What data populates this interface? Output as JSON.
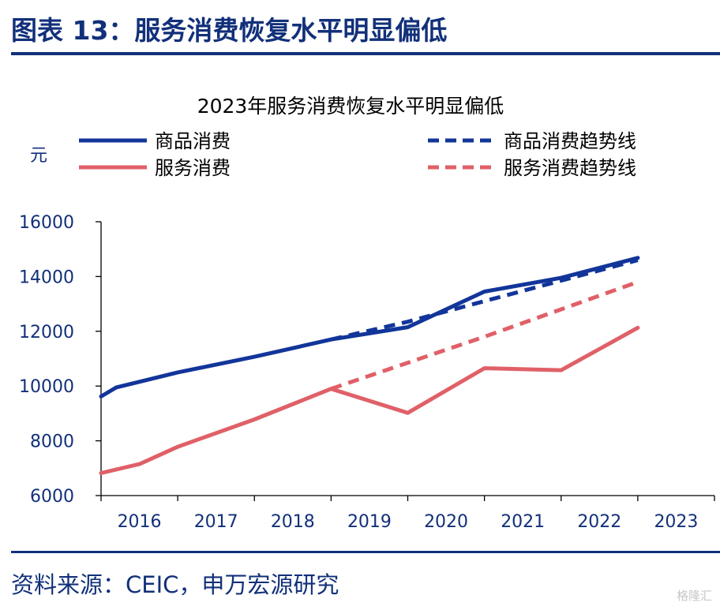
{
  "figure_label": "图表 13：服务消费恢复水平明显偏低",
  "source_note": "资料来源：CEIC，申万宏源研究",
  "watermark": "格隆汇",
  "colors": {
    "goods": "#12359a",
    "services": "#e06068",
    "text": "#12307a"
  },
  "chart_data": {
    "type": "line",
    "title": "2023年服务消费恢复水平明显偏低",
    "ylabel": "元",
    "xlabel": "",
    "categories": [
      "2016",
      "2017",
      "2018",
      "2019",
      "2020",
      "2021",
      "2022",
      "2023"
    ],
    "ylim": [
      6000,
      16000
    ],
    "yticks": [
      6000,
      8000,
      10000,
      12000,
      14000,
      16000
    ],
    "grid": false,
    "legend_position": "top",
    "series": [
      {
        "name": "商品消费",
        "style": "solid",
        "color": "#12359a",
        "x": [
          2016,
          2016.2,
          2017,
          2018,
          2019,
          2020,
          2021,
          2022,
          2023
        ],
        "values": [
          9620,
          9950,
          10500,
          11070,
          11700,
          12150,
          13450,
          13950,
          14680
        ]
      },
      {
        "name": "服务消费",
        "style": "solid",
        "color": "#e06068",
        "x": [
          2016,
          2016.5,
          2017,
          2018,
          2019,
          2020,
          2021,
          2022,
          2023
        ],
        "values": [
          6820,
          7150,
          7780,
          8780,
          9900,
          9020,
          10650,
          10580,
          12130
        ]
      },
      {
        "name": "商品消费趋势线",
        "style": "dashed",
        "color": "#12359a",
        "x": [
          2019,
          2020,
          2021,
          2022,
          2023
        ],
        "values": [
          11700,
          12350,
          13100,
          13850,
          14600
        ]
      },
      {
        "name": "服务消费趋势线",
        "style": "dashed",
        "color": "#e06068",
        "x": [
          2019,
          2020,
          2021,
          2022,
          2023
        ],
        "values": [
          9900,
          10850,
          11800,
          12800,
          13800
        ]
      }
    ]
  }
}
